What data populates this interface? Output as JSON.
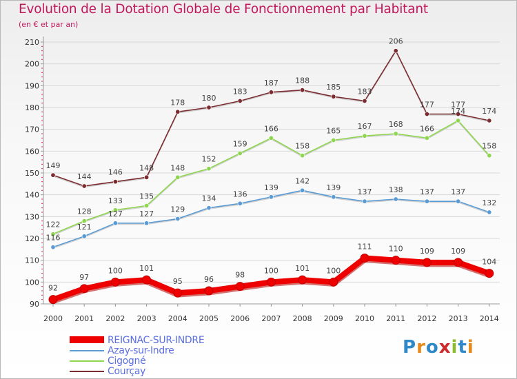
{
  "header": {
    "title": "Evolution de la Dotation Globale de Fonctionnement par Habitant",
    "subtitle": "(en € et par an)"
  },
  "logo": {
    "text": "Proxiti",
    "colors": [
      "#2f88c8",
      "#e58a1f",
      "#2f88c8",
      "#cc2b2b",
      "#8dbb2a",
      "#2f88c8",
      "#e58a1f"
    ]
  },
  "colors": {
    "title": "#c2185b",
    "axis": "#999999",
    "tick_mark": "#e02060",
    "grid": "#d8d8d8"
  },
  "chart_data": {
    "type": "line",
    "title": "Evolution de la Dotation Globale de Fonctionnement par Habitant",
    "subtitle": "(en € et par an)",
    "xlabel": "",
    "ylabel": "",
    "x": [
      "2000",
      "2001",
      "2002",
      "2003",
      "2004",
      "2005",
      "2006",
      "2007",
      "2008",
      "2009",
      "2010",
      "2011",
      "2012",
      "2013",
      "2014"
    ],
    "ylim": [
      90,
      210
    ],
    "yticks": [
      90,
      100,
      110,
      120,
      130,
      140,
      150,
      160,
      170,
      180,
      190,
      200,
      210
    ],
    "grid": "horizontal",
    "legend_position": "bottom-left",
    "series": [
      {
        "name": "REIGNAC-SUR-INDRE",
        "color": "#ee0000",
        "values": [
          92,
          97,
          100,
          101,
          95,
          96,
          98,
          100,
          101,
          100,
          111,
          110,
          109,
          109,
          104
        ],
        "emphasis": true
      },
      {
        "name": "Azay-sur-Indre",
        "color": "#5a9bd4",
        "values": [
          116,
          121,
          127,
          127,
          129,
          134,
          136,
          139,
          142,
          139,
          137,
          138,
          137,
          137,
          132
        ]
      },
      {
        "name": "Cigogné",
        "color": "#8fd650",
        "values": [
          122,
          128,
          133,
          135,
          148,
          152,
          159,
          166,
          158,
          165,
          167,
          168,
          166,
          174,
          158
        ]
      },
      {
        "name": "Courçay",
        "color": "#7b2c30",
        "values": [
          149,
          144,
          146,
          148,
          178,
          180,
          183,
          187,
          188,
          185,
          183,
          206,
          177,
          177,
          174
        ]
      }
    ]
  }
}
